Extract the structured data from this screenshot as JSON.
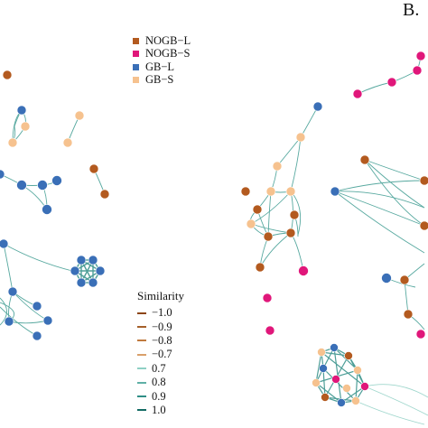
{
  "panel_label": "B.",
  "group_legend": [
    {
      "label": "NOGB−L",
      "color": "#b35a1f"
    },
    {
      "label": "NOGB−S",
      "color": "#e0177a"
    },
    {
      "label": "GB−L",
      "color": "#3a6fb7"
    },
    {
      "label": "GB−S",
      "color": "#f6c28f"
    }
  ],
  "similarity_legend": {
    "title": "Similarity",
    "items": [
      {
        "label": "−1.0",
        "color": "#8c4513"
      },
      {
        "label": "−0.9",
        "color": "#a5602a"
      },
      {
        "label": "−0.8",
        "color": "#c07a3e"
      },
      {
        "label": "−0.7",
        "color": "#d9a06a"
      },
      {
        "label": "0.7",
        "color": "#8fd0c4"
      },
      {
        "label": "0.8",
        "color": "#5fb0a6"
      },
      {
        "label": "0.9",
        "color": "#2f8e86"
      },
      {
        "label": "1.0",
        "color": "#136b64"
      }
    ]
  }
}
